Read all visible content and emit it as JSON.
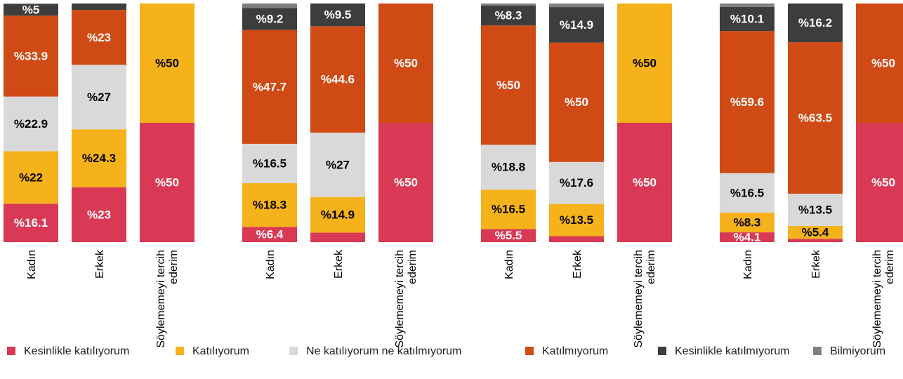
{
  "chart_data": [
    {
      "type": "bar",
      "stacked": true,
      "categories": [
        "Kadın",
        "Erkek",
        "Söylememeyi tercih ederim"
      ],
      "series": [
        {
          "name": "Kesinlikle katılıyorum",
          "color": "#d93954",
          "values": [
            16.1,
            23,
            50
          ],
          "value_labels": [
            "%16.1",
            "%23",
            "%50"
          ]
        },
        {
          "name": "Katılıyorum",
          "color": "#f5b21a",
          "values": [
            22,
            24.3,
            50
          ],
          "value_labels": [
            "%22",
            "%24.3",
            "%50"
          ]
        },
        {
          "name": "Ne katılıyorum ne katılmıyorum",
          "color": "#d9d9d9",
          "values": [
            22.9,
            27,
            null
          ],
          "value_labels": [
            "%22.9",
            "%27",
            null
          ]
        },
        {
          "name": "Katılmıyorum",
          "color": "#d04a15",
          "values": [
            33.9,
            23,
            null
          ],
          "value_labels": [
            "%33.9",
            "%23",
            null
          ]
        },
        {
          "name": "Kesinlikle katılmıyorum",
          "color": "#3d3d3d",
          "values": [
            5,
            2.7,
            null
          ],
          "value_labels": [
            "%5",
            null,
            null
          ]
        },
        {
          "name": "Bilmiyorum",
          "color": "#808080",
          "values": [
            null,
            null,
            null
          ],
          "value_labels": [
            null,
            null,
            null
          ]
        }
      ],
      "ylim": [
        0,
        100
      ]
    },
    {
      "type": "bar",
      "stacked": true,
      "categories": [
        "Kadın",
        "Erkek",
        "Söylememeyi tercih ederim"
      ],
      "series": [
        {
          "name": "Kesinlikle katılıyorum",
          "color": "#d93954",
          "values": [
            6.4,
            4,
            50
          ],
          "value_labels": [
            "%6.4",
            null,
            "%50"
          ]
        },
        {
          "name": "Katılıyorum",
          "color": "#f5b21a",
          "values": [
            18.3,
            14.9,
            null
          ],
          "value_labels": [
            "%18.3",
            "%14.9",
            null
          ]
        },
        {
          "name": "Ne katılıyorum ne katılmıyorum",
          "color": "#d9d9d9",
          "values": [
            16.5,
            27,
            null
          ],
          "value_labels": [
            "%16.5",
            "%27",
            null
          ]
        },
        {
          "name": "Katılmıyorum",
          "color": "#d04a15",
          "values": [
            47.7,
            44.6,
            50
          ],
          "value_labels": [
            "%47.7",
            "%44.6",
            "%50"
          ]
        },
        {
          "name": "Kesinlikle katılmıyorum",
          "color": "#3d3d3d",
          "values": [
            9.2,
            9.5,
            null
          ],
          "value_labels": [
            "%9.2",
            "%9.5",
            null
          ]
        },
        {
          "name": "Bilmiyorum",
          "color": "#808080",
          "values": [
            1.9,
            null,
            null
          ],
          "value_labels": [
            null,
            null,
            null
          ]
        }
      ],
      "ylim": [
        0,
        100
      ]
    },
    {
      "type": "bar",
      "stacked": true,
      "categories": [
        "Kadın",
        "Erkek",
        "Söylememeyi tercih ederim"
      ],
      "series": [
        {
          "name": "Kesinlikle katılıyorum",
          "color": "#d93954",
          "values": [
            5.5,
            2.5,
            50
          ],
          "value_labels": [
            "%5.5",
            null,
            "%50"
          ]
        },
        {
          "name": "Katılıyorum",
          "color": "#f5b21a",
          "values": [
            16.5,
            13.5,
            50
          ],
          "value_labels": [
            "%16.5",
            "%13.5",
            "%50"
          ]
        },
        {
          "name": "Ne katılıyorum ne katılmıyorum",
          "color": "#d9d9d9",
          "values": [
            18.8,
            17.6,
            null
          ],
          "value_labels": [
            "%18.8",
            "%17.6",
            null
          ]
        },
        {
          "name": "Katılmıyorum",
          "color": "#d04a15",
          "values": [
            50,
            50,
            null
          ],
          "value_labels": [
            "%50",
            "%50",
            null
          ]
        },
        {
          "name": "Kesinlikle katılmıyorum",
          "color": "#3d3d3d",
          "values": [
            8.3,
            14.9,
            null
          ],
          "value_labels": [
            "%8.3",
            "%14.9",
            null
          ]
        },
        {
          "name": "Bilmiyorum",
          "color": "#808080",
          "values": [
            0.9,
            1.5,
            null
          ],
          "value_labels": [
            null,
            null,
            null
          ]
        }
      ],
      "ylim": [
        0,
        100
      ]
    },
    {
      "type": "bar",
      "stacked": true,
      "categories": [
        "Kadın",
        "Erkek",
        "Söylememeyi tercih ederim"
      ],
      "series": [
        {
          "name": "Kesinlikle katılıyorum",
          "color": "#d93954",
          "values": [
            4.1,
            1.4,
            50
          ],
          "value_labels": [
            "%4.1",
            null,
            "%50"
          ]
        },
        {
          "name": "Katılıyorum",
          "color": "#f5b21a",
          "values": [
            8.3,
            5.4,
            null
          ],
          "value_labels": [
            "%8.3",
            "%5.4",
            null
          ]
        },
        {
          "name": "Ne katılıyorum ne katılmıyorum",
          "color": "#d9d9d9",
          "values": [
            16.5,
            13.5,
            null
          ],
          "value_labels": [
            "%16.5",
            "%13.5",
            null
          ]
        },
        {
          "name": "Katılmıyorum",
          "color": "#d04a15",
          "values": [
            59.6,
            63.5,
            50
          ],
          "value_labels": [
            "%59.6",
            "%63.5",
            "%50"
          ]
        },
        {
          "name": "Kesinlikle katılmıyorum",
          "color": "#3d3d3d",
          "values": [
            10.1,
            16.2,
            null
          ],
          "value_labels": [
            "%10.1",
            "%16.2",
            null
          ]
        },
        {
          "name": "Bilmiyorum",
          "color": "#808080",
          "values": [
            1.4,
            null,
            null
          ],
          "value_labels": [
            null,
            null,
            null
          ]
        }
      ],
      "ylim": [
        0,
        100
      ]
    }
  ]
}
